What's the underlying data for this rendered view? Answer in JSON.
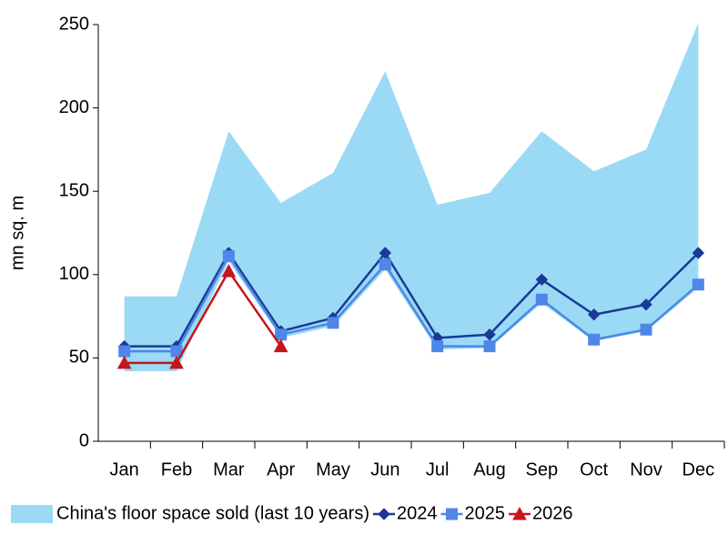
{
  "chart_data": {
    "type": "line",
    "y_label": "mn sq. m",
    "categories": [
      "Jan",
      "Feb",
      "Mar",
      "Apr",
      "May",
      "Jun",
      "Jul",
      "Aug",
      "Sep",
      "Oct",
      "Nov",
      "Dec"
    ],
    "ylim": [
      0,
      250
    ],
    "yticks": [
      0,
      50,
      100,
      150,
      200,
      250
    ],
    "range": {
      "name": "China's floor space sold (last 10 years)",
      "color": "#9bdaf5",
      "high": [
        87,
        87,
        186,
        143,
        161,
        222,
        142,
        149,
        186,
        162,
        175,
        251
      ],
      "low": [
        42,
        42,
        108,
        62,
        69,
        103,
        55,
        56,
        83,
        60,
        66,
        92
      ]
    },
    "series": [
      {
        "name": "2024",
        "color": "#1a3a96",
        "marker": "diamond",
        "values": [
          57,
          57,
          113,
          66,
          74,
          113,
          62,
          64,
          97,
          76,
          82,
          113
        ]
      },
      {
        "name": "2025",
        "color": "#4f86e8",
        "marker": "square",
        "values": [
          54,
          54,
          111,
          64,
          71,
          106,
          57,
          57,
          85,
          61,
          67,
          94
        ]
      },
      {
        "name": "2026",
        "color": "#c4161c",
        "marker": "triangle",
        "values": [
          47,
          47,
          102,
          57,
          null,
          null,
          null,
          null,
          null,
          null,
          null,
          null
        ]
      }
    ]
  }
}
